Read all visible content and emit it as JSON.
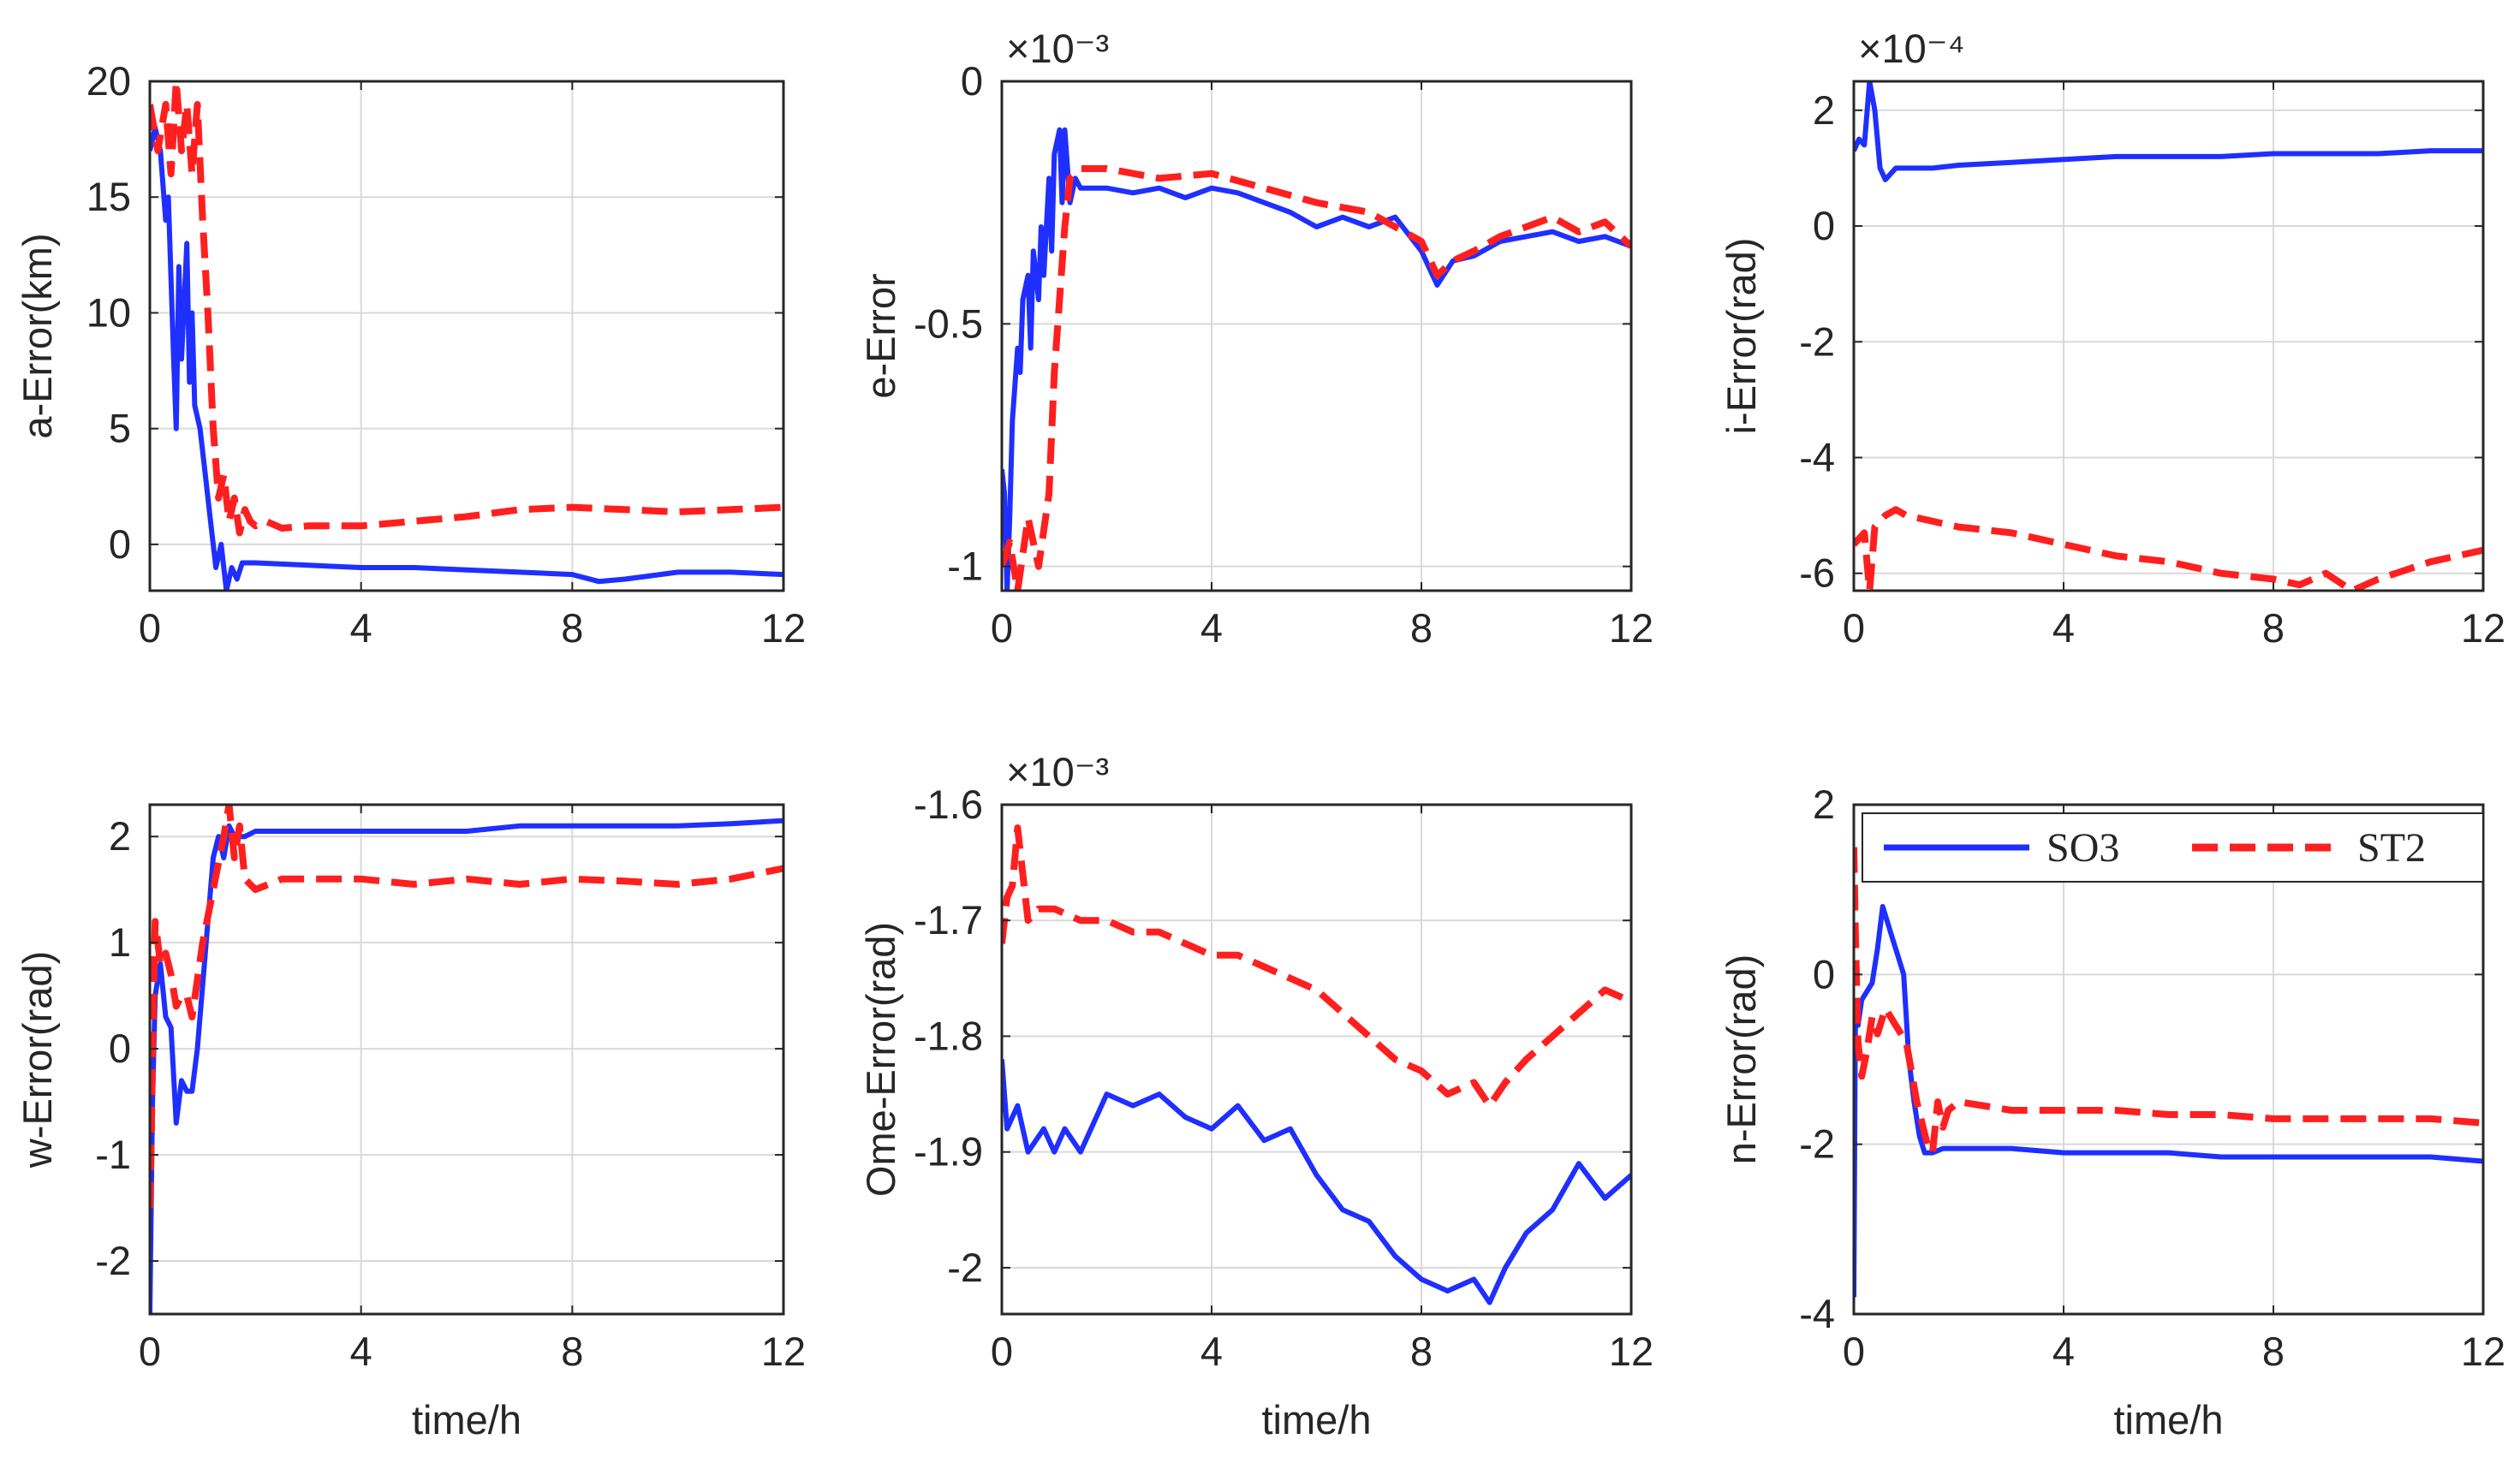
{
  "figure": {
    "colors": {
      "so3": "#1f2fff",
      "st2": "#ff1f1f",
      "grid": "#d9d9d9",
      "axis": "#262626"
    },
    "legend": {
      "placement": "top-right of panel n",
      "entries": [
        "SO3",
        "ST2"
      ]
    }
  },
  "chart_data": [
    {
      "type": "line",
      "panel": "a",
      "xlabel": "",
      "ylabel": "a-Error(km)",
      "exponent": "",
      "xlim": [
        0,
        12
      ],
      "ylim": [
        -2,
        20
      ],
      "xticks": [
        0,
        4,
        8,
        12
      ],
      "yticks": [
        0,
        5,
        10,
        15,
        20
      ],
      "xtick_labels": [
        "0",
        "4",
        "8",
        "12"
      ],
      "ytick_labels": [
        "0",
        "5",
        "10",
        "15",
        "20"
      ],
      "grid": true,
      "series": [
        {
          "name": "SO3",
          "style": "solid",
          "x": [
            0,
            0.1,
            0.2,
            0.3,
            0.35,
            0.45,
            0.5,
            0.55,
            0.6,
            0.7,
            0.75,
            0.8,
            0.85,
            0.95,
            1.05,
            1.15,
            1.25,
            1.35,
            1.45,
            1.55,
            1.65,
            1.75,
            2,
            3,
            4,
            5,
            6,
            7,
            8,
            8.5,
            9,
            10,
            11,
            12
          ],
          "y": [
            17,
            18,
            17,
            14,
            15,
            8,
            5,
            12,
            8,
            13,
            7,
            10,
            6,
            5,
            3,
            1,
            -1,
            0,
            -2,
            -1,
            -1.5,
            -0.8,
            -0.8,
            -0.9,
            -1,
            -1,
            -1.1,
            -1.2,
            -1.3,
            -1.6,
            -1.5,
            -1.2,
            -1.2,
            -1.3
          ]
        },
        {
          "name": "ST2",
          "style": "dashed",
          "x": [
            0,
            0.15,
            0.3,
            0.4,
            0.5,
            0.6,
            0.7,
            0.8,
            0.9,
            1.0,
            1.1,
            1.2,
            1.3,
            1.4,
            1.5,
            1.6,
            1.7,
            1.8,
            1.9,
            2.0,
            2.2,
            2.5,
            3,
            4,
            5,
            6,
            7,
            8,
            9,
            10,
            11,
            12
          ],
          "y": [
            19,
            17,
            19,
            16,
            20,
            17,
            19,
            16,
            19,
            14,
            10,
            5,
            2,
            3,
            1,
            2,
            0.5,
            1.5,
            1,
            0.8,
            1,
            0.7,
            0.8,
            0.8,
            1,
            1.2,
            1.5,
            1.6,
            1.5,
            1.4,
            1.5,
            1.6
          ]
        }
      ]
    },
    {
      "type": "line",
      "panel": "e",
      "xlabel": "",
      "ylabel": "e-Error",
      "exponent": "×10⁻³",
      "xlim": [
        0,
        12
      ],
      "ylim": [
        -1.05,
        0
      ],
      "xticks": [
        0,
        4,
        8,
        12
      ],
      "yticks": [
        -1,
        -0.5,
        0
      ],
      "xtick_labels": [
        "0",
        "4",
        "8",
        "12"
      ],
      "ytick_labels": [
        "-1",
        "-0.5",
        "0"
      ],
      "grid": true,
      "series": [
        {
          "name": "SO3",
          "style": "solid",
          "x": [
            0,
            0.05,
            0.1,
            0.15,
            0.2,
            0.3,
            0.35,
            0.4,
            0.5,
            0.55,
            0.6,
            0.7,
            0.75,
            0.8,
            0.9,
            0.95,
            1.0,
            1.1,
            1.15,
            1.2,
            1.3,
            1.4,
            1.5,
            2,
            2.5,
            3,
            3.5,
            4,
            4.5,
            5,
            5.5,
            6,
            6.5,
            7,
            7.5,
            8,
            8.3,
            8.6,
            9,
            9.5,
            10,
            10.5,
            11,
            11.5,
            12
          ],
          "y": [
            -0.8,
            -0.85,
            -1.05,
            -0.9,
            -0.7,
            -0.55,
            -0.6,
            -0.45,
            -0.4,
            -0.55,
            -0.35,
            -0.45,
            -0.3,
            -0.4,
            -0.2,
            -0.35,
            -0.15,
            -0.1,
            -0.25,
            -0.1,
            -0.25,
            -0.2,
            -0.22,
            -0.22,
            -0.23,
            -0.22,
            -0.24,
            -0.22,
            -0.23,
            -0.25,
            -0.27,
            -0.3,
            -0.28,
            -0.3,
            -0.28,
            -0.35,
            -0.42,
            -0.37,
            -0.36,
            -0.33,
            -0.32,
            -0.31,
            -0.33,
            -0.32,
            -0.34
          ]
        },
        {
          "name": "ST2",
          "style": "dashed",
          "x": [
            0,
            0.15,
            0.3,
            0.5,
            0.7,
            0.9,
            1.0,
            1.1,
            1.2,
            1.3,
            1.5,
            2,
            3,
            4,
            5,
            6,
            7,
            8,
            8.3,
            8.6,
            9,
            9.5,
            10,
            10.5,
            11,
            11.5,
            12
          ],
          "y": [
            -1.0,
            -0.95,
            -1.05,
            -0.9,
            -1.0,
            -0.85,
            -0.6,
            -0.45,
            -0.3,
            -0.2,
            -0.18,
            -0.18,
            -0.2,
            -0.19,
            -0.22,
            -0.25,
            -0.27,
            -0.33,
            -0.4,
            -0.37,
            -0.35,
            -0.32,
            -0.3,
            -0.28,
            -0.31,
            -0.29,
            -0.34
          ]
        }
      ]
    },
    {
      "type": "line",
      "panel": "i",
      "xlabel": "",
      "ylabel": "i-Error(rad)",
      "exponent": "×10⁻⁴",
      "xlim": [
        0,
        12
      ],
      "ylim": [
        -6.3,
        2.5
      ],
      "xticks": [
        0,
        4,
        8,
        12
      ],
      "yticks": [
        -6,
        -4,
        -2,
        0,
        2
      ],
      "xtick_labels": [
        "0",
        "4",
        "8",
        "12"
      ],
      "ytick_labels": [
        "-6",
        "-4",
        "-2",
        "0",
        "2"
      ],
      "grid": true,
      "series": [
        {
          "name": "SO3",
          "style": "solid",
          "x": [
            0,
            0.1,
            0.2,
            0.3,
            0.4,
            0.5,
            0.6,
            0.8,
            1,
            1.5,
            2,
            3,
            4,
            5,
            6,
            7,
            8,
            9,
            10,
            11,
            12
          ],
          "y": [
            1.3,
            1.5,
            1.4,
            2.5,
            2.0,
            1.0,
            0.8,
            1.0,
            1.0,
            1.0,
            1.05,
            1.1,
            1.15,
            1.2,
            1.2,
            1.2,
            1.25,
            1.25,
            1.25,
            1.3,
            1.3
          ]
        },
        {
          "name": "ST2",
          "style": "dashed",
          "x": [
            0,
            0.2,
            0.3,
            0.4,
            0.6,
            0.8,
            1,
            2,
            3,
            4,
            5,
            6,
            7,
            8,
            8.5,
            9,
            9.5,
            10,
            11,
            12
          ],
          "y": [
            -5.5,
            -5.3,
            -6.3,
            -5.2,
            -5.0,
            -4.9,
            -5.0,
            -5.2,
            -5.3,
            -5.5,
            -5.7,
            -5.8,
            -6.0,
            -6.1,
            -6.2,
            -6.0,
            -6.3,
            -6.1,
            -5.8,
            -5.6
          ]
        }
      ]
    },
    {
      "type": "line",
      "panel": "w",
      "xlabel": "time/h",
      "ylabel": "w-Error(rad)",
      "exponent": "",
      "xlim": [
        0,
        12
      ],
      "ylim": [
        -2.5,
        2.3
      ],
      "xticks": [
        0,
        4,
        8,
        12
      ],
      "yticks": [
        -2,
        -1,
        0,
        1,
        2
      ],
      "xtick_labels": [
        "0",
        "4",
        "8",
        "12"
      ],
      "ytick_labels": [
        "-2",
        "-1",
        "0",
        "1",
        "2"
      ],
      "grid": true,
      "series": [
        {
          "name": "SO3",
          "style": "solid",
          "x": [
            0,
            0.05,
            0.1,
            0.2,
            0.3,
            0.4,
            0.5,
            0.6,
            0.7,
            0.8,
            0.9,
            1.0,
            1.1,
            1.2,
            1.3,
            1.4,
            1.5,
            1.6,
            1.8,
            2,
            3,
            4,
            5,
            6,
            7,
            8,
            9,
            10,
            11,
            12
          ],
          "y": [
            -2.5,
            -0.5,
            0.5,
            0.8,
            0.3,
            0.2,
            -0.7,
            -0.3,
            -0.4,
            -0.4,
            0,
            0.6,
            1.2,
            1.8,
            2.0,
            1.8,
            2.1,
            2.0,
            2.0,
            2.05,
            2.05,
            2.05,
            2.05,
            2.05,
            2.1,
            2.1,
            2.1,
            2.1,
            2.12,
            2.15
          ]
        },
        {
          "name": "ST2",
          "style": "dashed",
          "x": [
            0,
            0.03,
            0.06,
            0.1,
            0.15,
            0.2,
            0.3,
            0.4,
            0.5,
            0.6,
            0.7,
            0.8,
            1.0,
            1.2,
            1.4,
            1.5,
            1.6,
            1.7,
            1.8,
            2,
            2.5,
            3,
            4,
            5,
            6,
            7,
            8,
            9,
            10,
            11,
            12
          ],
          "y": [
            -1.5,
            -0.8,
            0.3,
            1.2,
            1.0,
            0.8,
            0.9,
            0.7,
            0.4,
            0.5,
            0.5,
            0.3,
            1.0,
            1.5,
            2.0,
            2.3,
            1.8,
            2.1,
            1.6,
            1.5,
            1.6,
            1.6,
            1.6,
            1.55,
            1.6,
            1.55,
            1.6,
            1.58,
            1.55,
            1.6,
            1.7
          ]
        }
      ]
    },
    {
      "type": "line",
      "panel": "Ome",
      "xlabel": "time/h",
      "ylabel": "Ome-Error(rad)",
      "exponent": "×10⁻³",
      "xlim": [
        0,
        12
      ],
      "ylim": [
        -2.04,
        -1.6
      ],
      "xticks": [
        0,
        4,
        8,
        12
      ],
      "yticks": [
        -2,
        -1.9,
        -1.8,
        -1.7,
        -1.6
      ],
      "xtick_labels": [
        "0",
        "4",
        "8",
        "12"
      ],
      "ytick_labels": [
        "-2",
        "-1.9",
        "-1.8",
        "-1.7",
        "-1.6"
      ],
      "grid": true,
      "series": [
        {
          "name": "SO3",
          "style": "solid",
          "x": [
            0,
            0.1,
            0.3,
            0.5,
            0.8,
            1,
            1.2,
            1.5,
            2,
            2.5,
            3,
            3.5,
            4,
            4.5,
            5,
            5.5,
            6,
            6.5,
            7,
            7.5,
            8,
            8.5,
            9,
            9.3,
            9.6,
            10,
            10.5,
            11,
            11.5,
            12
          ],
          "y": [
            -1.82,
            -1.88,
            -1.86,
            -1.9,
            -1.88,
            -1.9,
            -1.88,
            -1.9,
            -1.85,
            -1.86,
            -1.85,
            -1.87,
            -1.88,
            -1.86,
            -1.89,
            -1.88,
            -1.92,
            -1.95,
            -1.96,
            -1.99,
            -2.01,
            -2.02,
            -2.01,
            -2.03,
            -2.0,
            -1.97,
            -1.95,
            -1.91,
            -1.94,
            -1.92
          ]
        },
        {
          "name": "ST2",
          "style": "dashed",
          "x": [
            0,
            0.1,
            0.2,
            0.3,
            0.4,
            0.5,
            0.7,
            1,
            1.5,
            2,
            2.5,
            3,
            3.5,
            4,
            4.5,
            5,
            5.5,
            6,
            6.5,
            7,
            7.5,
            8,
            8.5,
            9,
            9.3,
            9.6,
            10,
            10.5,
            11,
            11.5,
            12
          ],
          "y": [
            -1.72,
            -1.68,
            -1.67,
            -1.62,
            -1.66,
            -1.7,
            -1.69,
            -1.69,
            -1.7,
            -1.7,
            -1.71,
            -1.71,
            -1.72,
            -1.73,
            -1.73,
            -1.74,
            -1.75,
            -1.76,
            -1.78,
            -1.8,
            -1.82,
            -1.83,
            -1.85,
            -1.84,
            -1.86,
            -1.84,
            -1.82,
            -1.8,
            -1.78,
            -1.76,
            -1.77
          ]
        }
      ]
    },
    {
      "type": "line",
      "panel": "n",
      "xlabel": "time/h",
      "ylabel": "n-Error(rad)",
      "exponent": "",
      "xlim": [
        0,
        12
      ],
      "ylim": [
        -4,
        2
      ],
      "xticks": [
        0,
        4,
        8,
        12
      ],
      "yticks": [
        -4,
        -2,
        0,
        2
      ],
      "xtick_labels": [
        "0",
        "4",
        "8",
        "12"
      ],
      "ytick_labels": [
        "-4",
        "-2",
        "0",
        "2"
      ],
      "grid": true,
      "series": [
        {
          "name": "SO3",
          "style": "solid",
          "x": [
            0,
            0.03,
            0.08,
            0.15,
            0.25,
            0.35,
            0.45,
            0.55,
            0.65,
            0.75,
            0.85,
            0.95,
            1.05,
            1.15,
            1.25,
            1.35,
            1.5,
            1.7,
            2,
            3,
            4,
            5,
            6,
            7,
            8,
            9,
            10,
            11,
            12
          ],
          "y": [
            -3.8,
            -0.5,
            -0.6,
            -0.3,
            -0.2,
            -0.1,
            0.3,
            0.8,
            0.6,
            0.4,
            0.2,
            0,
            -1.0,
            -1.5,
            -1.9,
            -2.1,
            -2.1,
            -2.05,
            -2.05,
            -2.05,
            -2.1,
            -2.1,
            -2.1,
            -2.15,
            -2.15,
            -2.15,
            -2.15,
            -2.15,
            -2.2
          ]
        },
        {
          "name": "ST2",
          "style": "dashed",
          "x": [
            0,
            0.03,
            0.08,
            0.15,
            0.25,
            0.35,
            0.45,
            0.6,
            0.8,
            1.0,
            1.2,
            1.4,
            1.5,
            1.6,
            1.7,
            1.8,
            2,
            2.5,
            3,
            4,
            5,
            6,
            7,
            8,
            9,
            10,
            11,
            12
          ],
          "y": [
            1.5,
            0.5,
            -0.8,
            -1.2,
            -0.9,
            -0.5,
            -0.7,
            -0.4,
            -0.6,
            -0.8,
            -1.5,
            -2.0,
            -2.1,
            -1.5,
            -1.8,
            -1.6,
            -1.5,
            -1.55,
            -1.6,
            -1.6,
            -1.6,
            -1.65,
            -1.65,
            -1.7,
            -1.7,
            -1.7,
            -1.7,
            -1.75
          ]
        }
      ]
    }
  ]
}
